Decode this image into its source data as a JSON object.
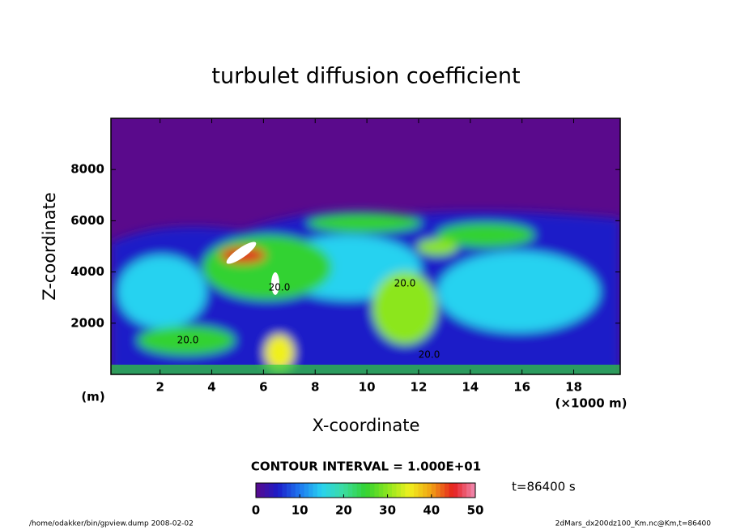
{
  "chart_data": {
    "type": "contour",
    "title": "turbulet diffusion coefficient",
    "x_label": "X-coordinate",
    "y_label": "Z-coordinate",
    "x_unit_left": "(m)",
    "x_unit_right": "(×1000 m)",
    "xlim": [
      0.1,
      19.8
    ],
    "xticks": [
      2,
      4,
      6,
      8,
      10,
      12,
      14,
      16,
      18
    ],
    "ylim": [
      0,
      10000
    ],
    "yticks": [
      2000,
      4000,
      6000,
      8000
    ],
    "contour_interval": "CONTOUR INTERVAL = 1.000E+01",
    "contour_labels": [
      "20.0",
      "20.0",
      "20.0",
      "20.0"
    ],
    "time_label": "t=86400 s",
    "colorbar": {
      "lim": [
        0,
        50
      ],
      "ticks": [
        0,
        10,
        20,
        30,
        40,
        50
      ],
      "colors": [
        "#5a0a8c",
        "#1c1cc8",
        "#1e78f0",
        "#28d2f0",
        "#3cdca0",
        "#32d232",
        "#8ce61e",
        "#f0f01e",
        "#f0a014",
        "#e61e1e",
        "#f08cb4"
      ]
    },
    "footer_left": "/home/odakker/bin/gpview.dump  2008-02-02",
    "footer_right": "2dMars_dx200dz100_Km.nc@Km,t=86400"
  }
}
